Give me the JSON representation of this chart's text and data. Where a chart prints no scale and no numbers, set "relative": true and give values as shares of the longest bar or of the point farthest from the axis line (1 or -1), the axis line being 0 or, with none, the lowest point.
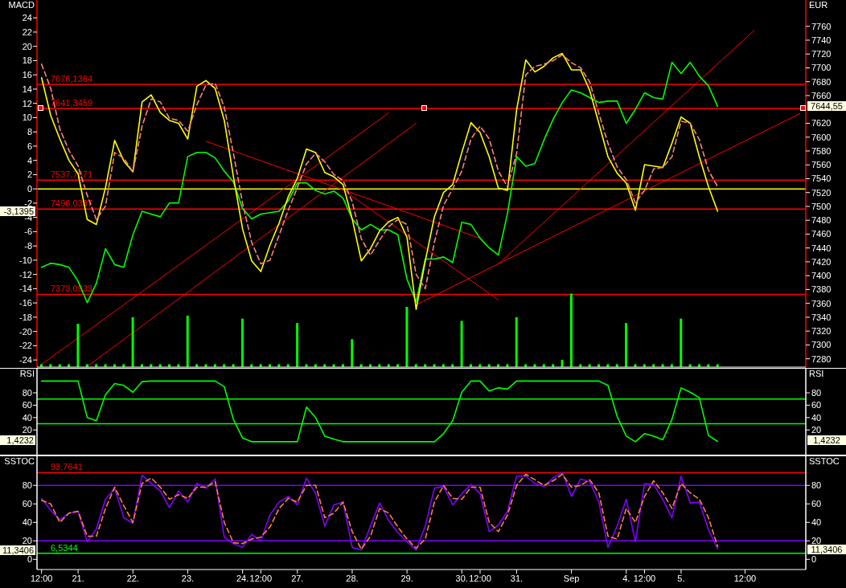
{
  "chart_data": [
    {
      "type": "line",
      "ylabel": "MACD",
      "y2label": "EUR",
      "categories": [
        null,
        null,
        null,
        null,
        null,
        null,
        null,
        null,
        null,
        null,
        null,
        null,
        null,
        null,
        null,
        null,
        null,
        null,
        null,
        null,
        null,
        null,
        null,
        null,
        null,
        null,
        null,
        null,
        null,
        null,
        null,
        null,
        null,
        null,
        null,
        null,
        null,
        null,
        null,
        null,
        null,
        null,
        null,
        null,
        null,
        null,
        null,
        null,
        null,
        null,
        null,
        null,
        null,
        null,
        null,
        null,
        null,
        null,
        null,
        null,
        null,
        null,
        null,
        null,
        null,
        null,
        null,
        null,
        null,
        null,
        null,
        null,
        null,
        null,
        null,
        null,
        null,
        null,
        null,
        null,
        null,
        null,
        null,
        null
      ],
      "series": [
        {
          "axis": "y2",
          "color": "#ff0000",
          "values": [
            7272,
            null,
            null,
            null,
            null,
            null,
            null,
            null,
            null,
            null,
            null,
            null,
            null,
            null,
            null,
            null,
            null,
            null,
            null,
            null,
            null,
            null,
            null,
            null,
            null,
            null,
            null,
            null,
            null,
            null,
            null,
            null,
            null,
            null,
            null,
            null,
            null,
            null,
            7635,
            null,
            null,
            null,
            null,
            null,
            null,
            null,
            null,
            null,
            null,
            null,
            null,
            null,
            null,
            null,
            null,
            null,
            null,
            null,
            null,
            null,
            null,
            null,
            null,
            null,
            null,
            null,
            null,
            null,
            null,
            null,
            null,
            null,
            null,
            null,
            null,
            null,
            null,
            null,
            null,
            null,
            null,
            null,
            null,
            null
          ]
        },
        {
          "axis": "y2",
          "color": "#ff0000",
          "values": [
            null,
            null,
            null,
            null,
            null,
            7269,
            null,
            null,
            null,
            null,
            null,
            null,
            null,
            null,
            null,
            null,
            null,
            null,
            null,
            null,
            null,
            null,
            null,
            null,
            null,
            null,
            null,
            null,
            null,
            null,
            null,
            null,
            null,
            null,
            null,
            null,
            null,
            null,
            null,
            null,
            null,
            7620,
            null,
            null,
            null,
            null,
            null,
            null,
            null,
            null,
            null,
            null,
            null,
            null,
            null,
            null,
            null,
            null,
            null,
            null,
            null,
            null,
            null,
            null,
            null,
            null,
            null,
            null,
            null,
            null,
            null,
            null,
            null,
            null,
            null,
            null,
            null,
            null,
            null,
            null,
            null,
            null,
            null,
            null
          ]
        },
        {
          "axis": "y2",
          "color": "#ff0000",
          "values": [
            null,
            null,
            null,
            null,
            null,
            null,
            null,
            null,
            null,
            null,
            null,
            null,
            null,
            null,
            null,
            null,
            null,
            null,
            7594,
            null,
            null,
            null,
            null,
            null,
            null,
            null,
            null,
            null,
            null,
            null,
            null,
            null,
            null,
            null,
            null,
            null,
            null,
            null,
            null,
            null,
            null,
            null,
            null,
            null,
            null,
            null,
            null,
            null,
            7454,
            null,
            null,
            null,
            null,
            null,
            null,
            null,
            null,
            null,
            null,
            null,
            null,
            null,
            null,
            null,
            null,
            null,
            null,
            null,
            null,
            null,
            null,
            null,
            null,
            null,
            null,
            null,
            null,
            null,
            null,
            null,
            null,
            null,
            null,
            null
          ]
        },
        {
          "axis": "y2",
          "color": "#ff0000",
          "values": [
            null,
            null,
            null,
            null,
            null,
            null,
            null,
            null,
            null,
            null,
            null,
            null,
            null,
            null,
            null,
            null,
            null,
            null,
            null,
            null,
            null,
            null,
            null,
            null,
            null,
            null,
            null,
            null,
            null,
            null,
            null,
            null,
            null,
            7524,
            null,
            null,
            null,
            null,
            null,
            null,
            null,
            null,
            null,
            null,
            null,
            null,
            null,
            null,
            null,
            null,
            7365,
            null,
            null,
            null,
            null,
            null,
            null,
            null,
            null,
            null,
            null,
            null,
            null,
            null,
            null,
            null,
            null,
            null,
            null,
            null,
            null,
            null,
            null,
            null,
            null,
            null,
            null,
            null,
            null,
            null,
            null,
            null,
            null,
            null
          ]
        },
        {
          "axis": "y2",
          "color": "#ff0000",
          "values": [
            null,
            null,
            null,
            null,
            null,
            null,
            null,
            null,
            null,
            null,
            null,
            null,
            null,
            null,
            null,
            null,
            null,
            null,
            null,
            null,
            null,
            null,
            null,
            null,
            null,
            null,
            null,
            null,
            null,
            null,
            null,
            null,
            null,
            null,
            null,
            null,
            null,
            null,
            null,
            null,
            null,
            7358,
            null,
            null,
            null,
            null,
            null,
            null,
            null,
            null,
            null,
            null,
            null,
            null,
            null,
            null,
            null,
            null,
            null,
            null,
            null,
            null,
            null,
            null,
            null,
            null,
            null,
            null,
            null,
            null,
            null,
            null,
            null,
            null,
            null,
            null,
            null,
            null,
            null,
            null,
            null,
            null,
            null,
            7634
          ]
        },
        {
          "axis": "y2",
          "color": "#ff0000",
          "values": [
            null,
            null,
            null,
            null,
            null,
            null,
            null,
            null,
            null,
            null,
            null,
            null,
            null,
            null,
            null,
            null,
            null,
            null,
            null,
            null,
            null,
            null,
            null,
            null,
            null,
            null,
            null,
            null,
            null,
            null,
            null,
            null,
            null,
            null,
            null,
            null,
            null,
            null,
            null,
            null,
            null,
            null,
            null,
            null,
            null,
            null,
            null,
            null,
            null,
            null,
            7417,
            null,
            null,
            null,
            null,
            null,
            null,
            null,
            null,
            null,
            null,
            null,
            null,
            null,
            null,
            null,
            null,
            null,
            null,
            null,
            null,
            null,
            null,
            null,
            null,
            null,
            null,
            null,
            7754,
            null,
            null,
            null,
            null,
            null
          ]
        },
        {
          "axis": "y2",
          "color": "#00ff00",
          "values": [
            7412,
            7418,
            7416,
            7412,
            7392,
            7361,
            7389,
            7439,
            7416,
            7412,
            7459,
            7493,
            7489,
            7485,
            7505,
            7505,
            7572,
            7578,
            7578,
            7570,
            7551,
            7535,
            7497,
            7482,
            7489,
            7491,
            7493,
            7508,
            7534,
            7534,
            7523,
            7518,
            7522,
            7512,
            7482,
            7466,
            7474,
            7466,
            7466,
            7459,
            7395,
            7362,
            7424,
            7424,
            7427,
            7419,
            7477,
            7474,
            7454,
            7440,
            7430,
            7490,
            7572,
            7558,
            7562,
            7596,
            7626,
            7650,
            7668,
            7664,
            7657,
            7650,
            7652,
            7652,
            7620,
            7640,
            7664,
            7657,
            7655,
            7708,
            7692,
            7708,
            7688,
            7674,
            7644.55,
            null,
            null,
            null,
            null,
            null,
            null,
            null,
            null,
            null
          ]
        },
        {
          "color": "#ffff00",
          "values": [
            15.6,
            10.3,
            7,
            4,
            2.1,
            -4.3,
            -5,
            0.2,
            6.8,
            3.9,
            2.4,
            12.2,
            13.2,
            10.7,
            9.6,
            9.2,
            7,
            14.4,
            15.2,
            14.1,
            9.6,
            1.7,
            -5.6,
            -10.1,
            -11.6,
            -7.9,
            -4.8,
            -1.1,
            1.5,
            5.6,
            5.1,
            2.3,
            1.7,
            0.6,
            -4.2,
            -10.1,
            -8.4,
            -5.9,
            -4.6,
            -4,
            -6.8,
            -16.9,
            -10.1,
            -3.9,
            -0.5,
            0.6,
            5.1,
            9.3,
            7.9,
            4.5,
            0.1,
            -0.2,
            11.1,
            18.1,
            16.4,
            17.2,
            18.4,
            19,
            16.7,
            16.7,
            13.8,
            9.2,
            4.5,
            2.2,
            0.8,
            -3,
            3.4,
            3.2,
            3,
            6.4,
            10.1,
            9.2,
            4.5,
            0.3,
            -3.1395,
            null,
            null,
            null,
            null,
            null,
            null,
            null,
            null,
            null
          ]
        },
        {
          "color": "#ff8080",
          "line_style": "dashed",
          "values": [
            17.5,
            14.1,
            8.4,
            5.4,
            3.2,
            -0.9,
            -4.3,
            -2.4,
            5.1,
            4.3,
            2.4,
            8.8,
            12.6,
            12.2,
            9.9,
            9.6,
            8.1,
            11.8,
            14.6,
            14.8,
            11.5,
            5,
            -2,
            -7.5,
            -10.5,
            -10,
            -6.5,
            -3,
            0.2,
            3.5,
            5,
            3.8,
            2,
            1.2,
            -1.8,
            -7,
            -9.3,
            -7.2,
            -5.3,
            -4.3,
            -5,
            -12,
            -14,
            -7.5,
            -2.3,
            0,
            2.5,
            7,
            8.8,
            7,
            2.5,
            0.3,
            5,
            16,
            17.2,
            17.5,
            18,
            18.8,
            17.7,
            17,
            15,
            10.6,
            6.4,
            3.1,
            1.3,
            -2,
            -0.2,
            2.8,
            3,
            4.5,
            9.5,
            9.2,
            6.9,
            2.6,
            0.3,
            null,
            null,
            null,
            null,
            null,
            null,
            null,
            null,
            null
          ]
        }
      ],
      "ylim": [
        -25,
        26.5
      ],
      "yticks": [
        -24,
        -22,
        -20,
        -18,
        -16,
        -14,
        -12,
        -10,
        -8,
        -6,
        -4,
        -2,
        0,
        2,
        4,
        6,
        8,
        10,
        12,
        14,
        16,
        18,
        20,
        22,
        24
      ],
      "y2lim": [
        7268,
        7798
      ],
      "y2ticks": [
        7280,
        7300,
        7320,
        7340,
        7360,
        7380,
        7400,
        7420,
        7440,
        7460,
        7480,
        7500,
        7520,
        7540,
        7560,
        7580,
        7600,
        7620,
        7660,
        7680,
        7700,
        7720,
        7740,
        7760
      ],
      "ref_lines": [
        {
          "axis": "y",
          "value": 0,
          "color": "#ffff00"
        },
        {
          "axis": "y2",
          "value": 7676.1364,
          "label": "7676,1364",
          "color": "#ff0000"
        },
        {
          "axis": "y2",
          "value": 7641.3459,
          "label": "7641,3459",
          "color": "#ff0000"
        },
        {
          "axis": "y2",
          "value": 7537.7871,
          "label": "7537,7871",
          "color": "#ff0000"
        },
        {
          "axis": "y2",
          "value": 7496.0337,
          "label": "7496,0337",
          "color": "#ff0000"
        },
        {
          "axis": "y2",
          "value": 7373.0933,
          "label": "7373,0933",
          "color": "#ff0000"
        }
      ],
      "annotations": [
        "-3,1395",
        "7644,55"
      ],
      "tick_labels": "y"
    },
    {
      "type": "bar",
      "relative": true,
      "color": "#00ff00",
      "categories": [
        null,
        null,
        null,
        null,
        null,
        null,
        null,
        null,
        null,
        null,
        null,
        null,
        null,
        null,
        null,
        null,
        null,
        null,
        null,
        null,
        null,
        null,
        null,
        null,
        null,
        null,
        null,
        null,
        null,
        null,
        null,
        null,
        null,
        null,
        null,
        null,
        null,
        null,
        null,
        null,
        null,
        null,
        null,
        null,
        null,
        null,
        null,
        null,
        null,
        null,
        null,
        null,
        null,
        null,
        null,
        null,
        null,
        null,
        null,
        null,
        null,
        null,
        null,
        null,
        null,
        null,
        null,
        null,
        null,
        null,
        null,
        null,
        null,
        null,
        null,
        null,
        null,
        null,
        null,
        null,
        null,
        null,
        null,
        null
      ],
      "values": [
        0.04,
        0.04,
        0.04,
        0.04,
        0.59,
        0.04,
        0.04,
        0.04,
        0.04,
        0.04,
        0.68,
        0.04,
        0.04,
        0.04,
        0.04,
        0.04,
        0.7,
        0.04,
        0.04,
        0.04,
        0.04,
        0.04,
        0.66,
        0.04,
        0.04,
        0.04,
        0.04,
        0.04,
        0.6,
        0.04,
        0.04,
        0.04,
        0.04,
        0.04,
        0.38,
        0.04,
        0.04,
        0.04,
        0.04,
        0.04,
        0.82,
        0.04,
        0.04,
        0.04,
        0.04,
        0.04,
        0.63,
        0.04,
        0.04,
        0.04,
        0.04,
        0.04,
        0.68,
        0.04,
        0.04,
        0.04,
        0.04,
        0.1,
        1,
        0.04,
        0.04,
        0.04,
        0.04,
        0.04,
        0.6,
        0.04,
        0.04,
        0.04,
        0.04,
        0.04,
        0.66,
        0.04,
        0.04,
        0.04,
        0.04,
        null,
        null,
        null,
        null,
        null,
        null,
        null,
        null,
        null
      ],
      "tick_labels": false
    },
    {
      "type": "line",
      "ylabel": "RSI",
      "y2label": "RSI",
      "categories": [
        null,
        null,
        null,
        null,
        null,
        null,
        null,
        null,
        null,
        null,
        null,
        null,
        null,
        null,
        null,
        null,
        null,
        null,
        null,
        null,
        null,
        null,
        null,
        null,
        null,
        null,
        null,
        null,
        null,
        null,
        null,
        null,
        null,
        null,
        null,
        null,
        null,
        null,
        null,
        null,
        null,
        null,
        null,
        null,
        null,
        null,
        null,
        null,
        null,
        null,
        null,
        null,
        null,
        null,
        null,
        null,
        null,
        null,
        null,
        null,
        null,
        null,
        null,
        null,
        null,
        null,
        null,
        null,
        null,
        null,
        null,
        null,
        null,
        null,
        null,
        null,
        null,
        null,
        null,
        null,
        null,
        null,
        null,
        null
      ],
      "series": [
        {
          "color": "#00ff00",
          "values": [
            99,
            99,
            99,
            99,
            99,
            40,
            35,
            77,
            95,
            92,
            81,
            98,
            99,
            99,
            99,
            99,
            99,
            99,
            99,
            99,
            90,
            37,
            7,
            1,
            1,
            1,
            1,
            1,
            1,
            57,
            40,
            10,
            5,
            1,
            1,
            1,
            1,
            1,
            1,
            1,
            1,
            1,
            1,
            1,
            14,
            35,
            81,
            99,
            99,
            83,
            88,
            86,
            99,
            99,
            99,
            99,
            99,
            99,
            99,
            99,
            99,
            99,
            92,
            42,
            10,
            1,
            14,
            10,
            4,
            37,
            88,
            81,
            72,
            11,
            1.4232,
            null,
            null,
            null,
            null,
            null,
            null,
            null,
            null,
            null
          ]
        }
      ],
      "ylim": [
        -20,
        119
      ],
      "yticks": [
        20,
        40,
        60,
        80
      ],
      "y2lim": [
        -20,
        119
      ],
      "y2ticks": [
        20,
        40,
        60,
        80
      ],
      "ref_lines": [
        {
          "axis": "y",
          "value": 70,
          "color": "#00ff00"
        },
        {
          "axis": "y",
          "value": 30,
          "color": "#00ff00"
        }
      ],
      "annotations": [
        "1,4232",
        "1,4232"
      ],
      "tick_labels": "y"
    },
    {
      "type": "line",
      "ylabel": "SSTOC",
      "y2label": "SSTOC",
      "categories": [
        "12:00",
        null,
        null,
        null,
        "21.",
        null,
        null,
        null,
        null,
        null,
        "22.",
        null,
        null,
        null,
        null,
        null,
        "23.",
        null,
        null,
        null,
        null,
        null,
        "24.",
        null,
        "12:00",
        null,
        null,
        null,
        "27.",
        null,
        null,
        null,
        null,
        null,
        "28.",
        null,
        null,
        null,
        null,
        null,
        "29.",
        null,
        null,
        null,
        null,
        null,
        "30.",
        null,
        "12:00",
        null,
        null,
        null,
        "31.",
        null,
        null,
        null,
        null,
        null,
        "Sep",
        null,
        null,
        null,
        null,
        null,
        "4.",
        null,
        "12:00",
        null,
        null,
        null,
        "5.",
        null,
        null,
        null,
        null,
        null,
        null,
        "12:00",
        null,
        null,
        null,
        null,
        null,
        null
      ],
      "series": [
        {
          "color": "#8000ff",
          "values": [
            66,
            53,
            43,
            50,
            52,
            19,
            33,
            65,
            77,
            45,
            39,
            91,
            82,
            74,
            56,
            74,
            62,
            82,
            77,
            87,
            24,
            17,
            13,
            27,
            20,
            48,
            62,
            68,
            59,
            88,
            71,
            36,
            59,
            62,
            13,
            10,
            36,
            61,
            42,
            29,
            19,
            10,
            36,
            77,
            79,
            59,
            71,
            81,
            71,
            30,
            37,
            52,
            90,
            90,
            82,
            79,
            88,
            94,
            68,
            87,
            84,
            62,
            13,
            36,
            65,
            19,
            82,
            81,
            65,
            45,
            90,
            61,
            62,
            32,
            11.3406,
            null,
            null,
            null,
            null,
            null,
            null,
            null,
            null,
            null
          ]
        },
        {
          "color": "#ff8040",
          "line_style": "dashed",
          "values": [
            64,
            60,
            40,
            50,
            52,
            25,
            25,
            55,
            78,
            58,
            40,
            82,
            88,
            78,
            65,
            70,
            66,
            78,
            78,
            84,
            40,
            18,
            17,
            22,
            24,
            35,
            55,
            66,
            62,
            80,
            80,
            45,
            50,
            62,
            30,
            11,
            25,
            55,
            50,
            35,
            22,
            12,
            22,
            62,
            80,
            66,
            65,
            78,
            78,
            40,
            30,
            48,
            80,
            92,
            86,
            80,
            85,
            92,
            78,
            80,
            86,
            72,
            25,
            22,
            55,
            40,
            68,
            85,
            72,
            55,
            82,
            72,
            65,
            45,
            14,
            null,
            null,
            null,
            null,
            null,
            null,
            null,
            null,
            null
          ]
        }
      ],
      "ylim": [
        -11,
        111.5
      ],
      "yticks": [
        0,
        20,
        40,
        60,
        80
      ],
      "y2lim": [
        -11,
        111.5
      ],
      "y2ticks": [
        0,
        20,
        40,
        60,
        80
      ],
      "ref_lines": [
        {
          "axis": "y",
          "value": 93.7641,
          "label": "93,7641",
          "color": "#ff0000"
        },
        {
          "axis": "y",
          "value": 80,
          "color": "#8000ff"
        },
        {
          "axis": "y",
          "value": 20,
          "color": "#8000ff"
        },
        {
          "axis": "y",
          "value": 6.5344,
          "label": "6,5344",
          "color": "#00ff00"
        }
      ],
      "annotations": [
        "11,3406",
        "11,3406"
      ]
    }
  ]
}
